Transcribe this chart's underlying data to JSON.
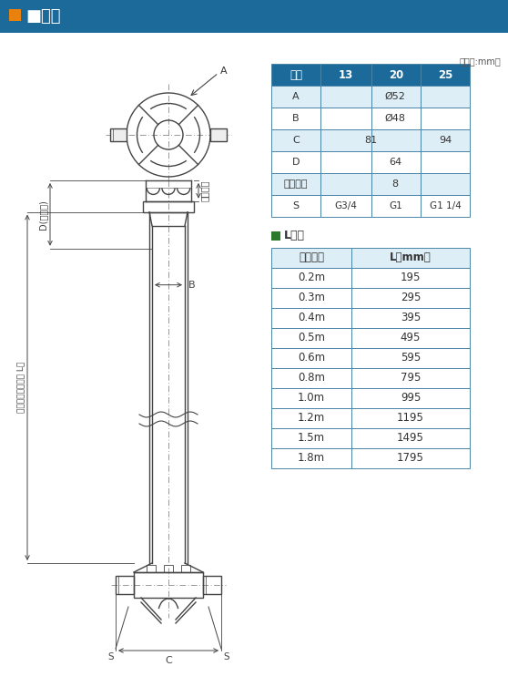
{
  "title": "寸法",
  "title_bg_color": "#1b6a9a",
  "title_fg_color": "#ffffff",
  "title_square_color": "#e8820c",
  "unit_note": "（単位:mm）",
  "table1_header": [
    "口径",
    "13",
    "20",
    "25"
  ],
  "table1_header_bg": "#1b6a9a",
  "table1_header_fg": "#ffffff",
  "table1_rows": [
    [
      "A",
      "Ø52",
      "",
      ""
    ],
    [
      "B",
      "Ø48",
      "",
      ""
    ],
    [
      "C",
      "81",
      "",
      "94"
    ],
    [
      "D",
      "64",
      "",
      ""
    ],
    [
      "リフト量",
      "8",
      "",
      ""
    ],
    [
      "S",
      "G3/4",
      "G1",
      "G1 1/4"
    ]
  ],
  "table1_row_bg_alt": "#ddeef7",
  "table1_row_bg": "#ffffff",
  "table1_border": "#4a86a8",
  "table2_title": "L寸法",
  "table2_title_square": "#2d7a2d",
  "table2_header": [
    "呼び長さ",
    "L（mm）"
  ],
  "table2_header_bg": "#ddeef7",
  "table2_rows": [
    [
      "0.2m",
      "195"
    ],
    [
      "0.3m",
      "295"
    ],
    [
      "0.4m",
      "395"
    ],
    [
      "0.5m",
      "495"
    ],
    [
      "0.6m",
      "595"
    ],
    [
      "0.8m",
      "795"
    ],
    [
      "1.0m",
      "995"
    ],
    [
      "1.2m",
      "1195"
    ],
    [
      "1.5m",
      "1495"
    ],
    [
      "1.8m",
      "1795"
    ]
  ],
  "table2_border": "#4a86a8",
  "bg_color": "#ffffff",
  "diagram_line_color": "#444444",
  "dim_line_color": "#666666",
  "dim_text_color": "#444444"
}
